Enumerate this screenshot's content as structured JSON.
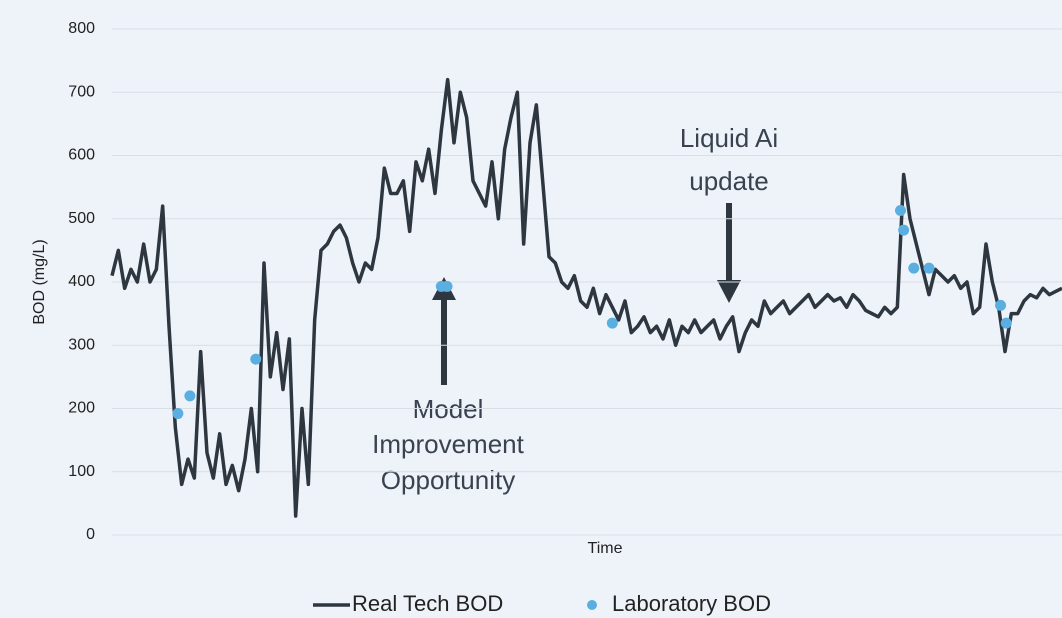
{
  "chart_data": {
    "type": "line",
    "ylabel": "BOD (mg/L)",
    "xlabel": "Time",
    "ylim": [
      0,
      800
    ],
    "yticks": [
      0,
      100,
      200,
      300,
      400,
      500,
      600,
      700,
      800
    ],
    "xlim": [
      0,
      150
    ],
    "grid": true,
    "legend": "bottom",
    "series": [
      {
        "name": "Real Tech BOD",
        "color": "#2e3640",
        "kind": "line",
        "values": [
          410,
          450,
          390,
          420,
          400,
          460,
          400,
          420,
          520,
          330,
          170,
          80,
          120,
          90,
          290,
          130,
          90,
          160,
          80,
          110,
          70,
          120,
          200,
          100,
          430,
          250,
          320,
          230,
          310,
          30,
          200,
          80,
          340,
          450,
          460,
          480,
          490,
          470,
          430,
          400,
          430,
          420,
          470,
          580,
          540,
          540,
          560,
          480,
          590,
          560,
          610,
          540,
          640,
          720,
          620,
          700,
          660,
          560,
          540,
          520,
          590,
          500,
          610,
          660,
          700,
          460,
          620,
          680,
          560,
          440,
          430,
          400,
          390,
          410,
          370,
          360,
          390,
          350,
          380,
          360,
          340,
          370,
          320,
          330,
          345,
          320,
          330,
          310,
          340,
          300,
          330,
          320,
          340,
          320,
          330,
          340,
          310,
          330,
          345,
          290,
          320,
          340,
          330,
          370,
          350,
          360,
          370,
          350,
          360,
          370,
          380,
          360,
          370,
          380,
          370,
          375,
          360,
          380,
          370,
          355,
          350,
          345,
          360,
          350,
          360,
          570,
          500,
          460,
          420,
          380,
          420,
          410,
          400,
          410,
          390,
          400,
          350,
          360,
          460,
          400,
          360,
          290,
          350,
          350,
          370,
          380,
          375,
          390,
          380,
          385,
          390
        ]
      },
      {
        "name": "Laboratory BOD",
        "color": "#5aafe0",
        "kind": "scatter",
        "x": [
          10.4,
          12.3,
          22.7,
          52,
          52.9,
          79,
          124.5,
          125,
          126.6,
          129,
          140.3,
          141.2
        ],
        "values": [
          192,
          220,
          278,
          393,
          393,
          335,
          513,
          482,
          422,
          422,
          363,
          335
        ]
      }
    ],
    "annotations": [
      {
        "lines": [
          "Liquid Ai",
          "update"
        ]
      },
      {
        "lines": [
          "Model",
          "Improvement",
          "Opportunity"
        ]
      }
    ]
  }
}
